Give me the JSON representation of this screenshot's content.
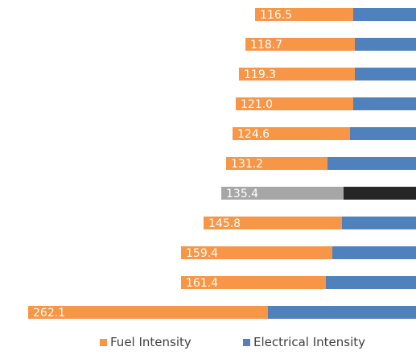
{
  "chart_data": {
    "type": "bar",
    "orientation": "horizontal",
    "stacked": true,
    "series": [
      {
        "name": "Fuel Intensity",
        "color": "#F79646"
      },
      {
        "name": "Electrical Intensity",
        "color": "#4F81BD"
      }
    ],
    "highlight_colors": {
      "fuel": "#A6A6A6",
      "electrical": "#262626"
    },
    "rows": [
      {
        "label": "116.5",
        "fuel": 61,
        "electrical": 39,
        "highlight": false
      },
      {
        "label": "118.7",
        "fuel": 68,
        "electrical": 38,
        "highlight": false
      },
      {
        "label": "119.3",
        "fuel": 72,
        "electrical": 38,
        "highlight": false
      },
      {
        "label": "121.0",
        "fuel": 73,
        "electrical": 39,
        "highlight": false
      },
      {
        "label": "124.6",
        "fuel": 73,
        "electrical": 41,
        "highlight": false
      },
      {
        "label": "131.2",
        "fuel": 63,
        "electrical": 55,
        "highlight": false
      },
      {
        "label": "135.4",
        "fuel": 76,
        "electrical": 45,
        "highlight": true
      },
      {
        "label": "145.8",
        "fuel": 86,
        "electrical": 46,
        "highlight": false
      },
      {
        "label": "159.4",
        "fuel": 94,
        "electrical": 52,
        "highlight": false
      },
      {
        "label": "161.4",
        "fuel": 90,
        "electrical": 56,
        "highlight": false
      },
      {
        "label": "262.1",
        "fuel": 149,
        "electrical": 92,
        "highlight": false
      }
    ],
    "legend": {
      "position": "bottom"
    }
  }
}
